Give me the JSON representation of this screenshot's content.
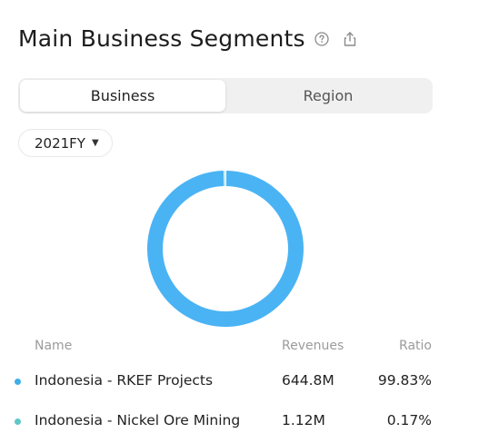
{
  "header": {
    "title": "Main Business Segments",
    "help_icon": "help-circle-icon",
    "share_icon": "share-icon"
  },
  "tabs": [
    {
      "label": "Business",
      "active": true
    },
    {
      "label": "Region",
      "active": false
    }
  ],
  "period_selector": {
    "value": "2021FY"
  },
  "chart_data": {
    "type": "pie",
    "variant": "donut",
    "categories": [
      "Indonesia - RKEF Projects",
      "Indonesia - Nickel Ore Mining"
    ],
    "values": [
      99.83,
      0.17
    ],
    "colors": [
      "#4ab3f4",
      "#5ec7c9"
    ]
  },
  "table": {
    "columns": [
      "Name",
      "Revenues",
      "Ratio"
    ],
    "rows": [
      {
        "name": "Indonesia - RKEF Projects",
        "revenue": "644.8M",
        "ratio": "99.83%",
        "color": "#3eaee8"
      },
      {
        "name": "Indonesia - Nickel Ore Mining",
        "revenue": "1.12M",
        "ratio": "0.17%",
        "color": "#5ec7c9"
      }
    ]
  }
}
